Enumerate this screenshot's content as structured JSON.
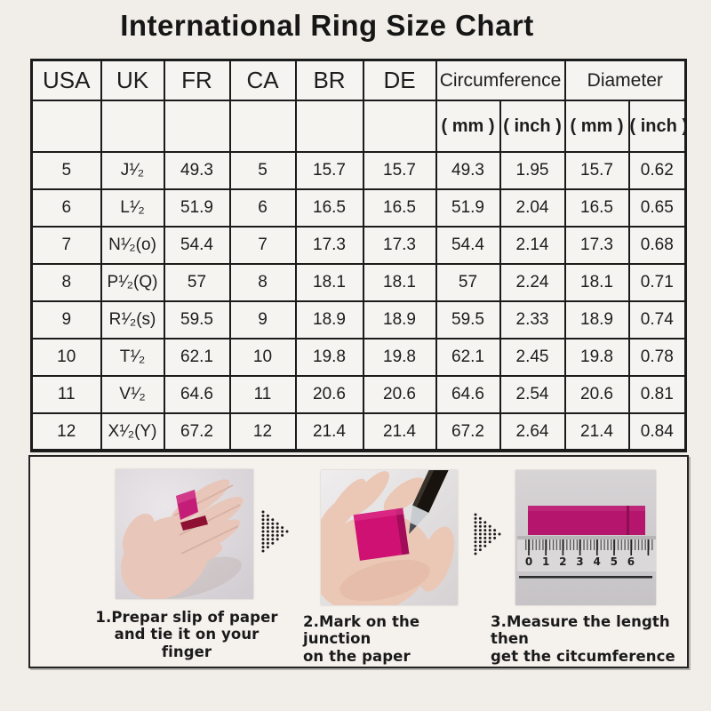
{
  "title": "International Ring Size Chart",
  "table": {
    "headers": [
      "USA",
      "UK",
      "FR",
      "CA",
      "BR",
      "DE"
    ],
    "circumference_label": "Circumference",
    "diameter_label": "Diameter",
    "sub_headers": [
      "( mm )",
      "( inch )",
      "( mm )",
      "( inch )"
    ]
  },
  "ruler": {
    "numbers": [
      "0",
      "1",
      "2",
      "3",
      "4",
      "5",
      "6"
    ]
  },
  "steps": [
    {
      "line1": "1.Prepar slip of paper",
      "line2": "and tie it on your finger",
      "image": "hand-back-with-paper-strip"
    },
    {
      "line1": "2.Mark on the junction",
      "line2": "on the paper",
      "image": "palm-with-pen-marking"
    },
    {
      "line1": "3.Measure the length then",
      "line2": "get the citcumference",
      "image": "ruler-measuring-strip"
    }
  ],
  "colors": {
    "accent_magenta": "#c2186f",
    "border": "#1b1b1b",
    "background": "#f1eee9"
  },
  "chart_data": {
    "type": "table",
    "title": "International Ring Size Chart",
    "columns": [
      "USA",
      "UK",
      "FR",
      "CA",
      "BR",
      "DE",
      "Circumference (mm)",
      "Circumference (inch)",
      "Diameter (mm)",
      "Diameter (inch)"
    ],
    "rows": [
      [
        "5",
        "J¹⁄₂",
        "49.3",
        "5",
        "15.7",
        "15.7",
        "49.3",
        "1.95",
        "15.7",
        "0.62"
      ],
      [
        "6",
        "L¹⁄₂",
        "51.9",
        "6",
        "16.5",
        "16.5",
        "51.9",
        "2.04",
        "16.5",
        "0.65"
      ],
      [
        "7",
        "N¹⁄₂(o)",
        "54.4",
        "7",
        "17.3",
        "17.3",
        "54.4",
        "2.14",
        "17.3",
        "0.68"
      ],
      [
        "8",
        "P¹⁄₂(Q)",
        "57",
        "8",
        "18.1",
        "18.1",
        "57",
        "2.24",
        "18.1",
        "0.71"
      ],
      [
        "9",
        "R¹⁄₂(s)",
        "59.5",
        "9",
        "18.9",
        "18.9",
        "59.5",
        "2.33",
        "18.9",
        "0.74"
      ],
      [
        "10",
        "T¹⁄₂",
        "62.1",
        "10",
        "19.8",
        "19.8",
        "62.1",
        "2.45",
        "19.8",
        "0.78"
      ],
      [
        "11",
        "V¹⁄₂",
        "64.6",
        "11",
        "20.6",
        "20.6",
        "64.6",
        "2.54",
        "20.6",
        "0.81"
      ],
      [
        "12",
        "X¹⁄₂(Y)",
        "67.2",
        "12",
        "21.4",
        "21.4",
        "67.2",
        "2.64",
        "21.4",
        "0.84"
      ]
    ]
  }
}
